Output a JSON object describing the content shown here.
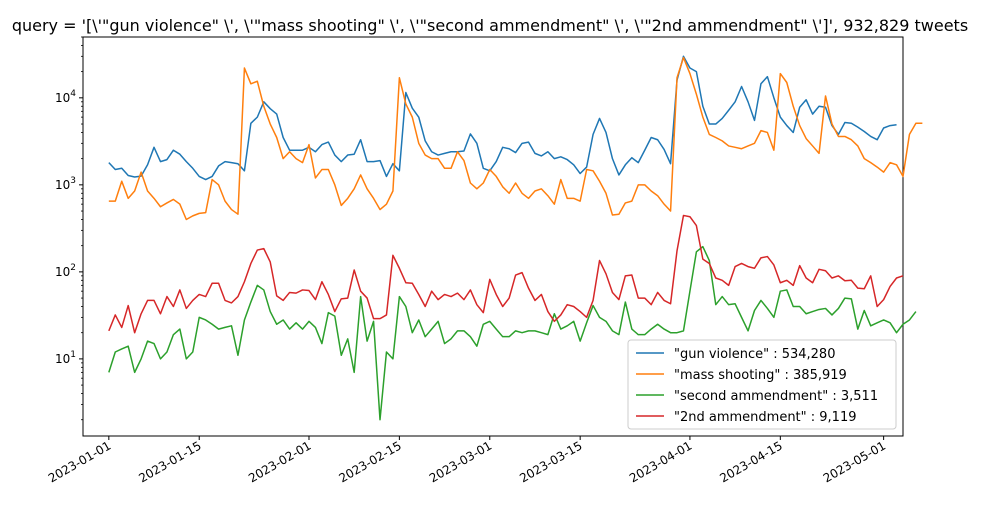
{
  "chart_data": {
    "type": "line",
    "title": "query = '[\\'\"gun violence\" \\', \\'\"mass shooting\" \\', \\'\"second ammendment\" \\', \\'\"2nd ammendment\" \\']', 932,829 tweets",
    "xlabel": "",
    "ylabel": "",
    "yscale": "log",
    "xlim": [
      "2022-12-28",
      "2023-05-04"
    ],
    "ylim": [
      1.3,
      50000
    ],
    "xticks": [
      "2023-01-01",
      "2023-01-15",
      "2023-02-01",
      "2023-02-15",
      "2023-03-01",
      "2023-03-15",
      "2023-04-01",
      "2023-04-15",
      "2023-05-01"
    ],
    "yticks": [
      {
        "value": 10,
        "base": "10",
        "exp": "1"
      },
      {
        "value": 100,
        "base": "10",
        "exp": "2"
      },
      {
        "value": 1000,
        "base": "10",
        "exp": "3"
      },
      {
        "value": 10000,
        "base": "10",
        "exp": "4"
      }
    ],
    "grid": false,
    "legend_position": "lower-right",
    "x_start": "2023-01-01",
    "series": [
      {
        "name": "\"gun violence\" : 534,280",
        "color": "#1f77b4",
        "values": [
          1800,
          1500,
          1550,
          1280,
          1230,
          1260,
          1700,
          2700,
          1850,
          1950,
          2500,
          2250,
          1850,
          1550,
          1250,
          1150,
          1250,
          1650,
          1850,
          1800,
          1750,
          1450,
          5100,
          6000,
          9000,
          7500,
          6500,
          3500,
          2500,
          2500,
          2500,
          2700,
          2400,
          2900,
          3100,
          2200,
          1850,
          2200,
          2250,
          3300,
          1850,
          1850,
          1900,
          1250,
          1750,
          1450,
          11500,
          7600,
          6000,
          3200,
          2400,
          2200,
          2300,
          2400,
          2400,
          2450,
          3850,
          3000,
          1550,
          1450,
          1850,
          2700,
          2600,
          2350,
          3000,
          3100,
          2300,
          2150,
          2400,
          2000,
          2100,
          1950,
          1700,
          1350,
          1600,
          3800,
          5800,
          4000,
          2000,
          1300,
          1700,
          2050,
          1800,
          2500,
          3500,
          3300,
          2550,
          1750,
          16000,
          30000,
          22000,
          20000,
          8000,
          5000,
          5000,
          5800,
          7200,
          9000,
          13500,
          9000,
          5500,
          14500,
          17500,
          10000,
          6000,
          4800,
          4000,
          7800,
          9500,
          6500,
          8000,
          7800,
          4800,
          3800,
          5200,
          5100,
          4600,
          4100,
          3600,
          3300,
          4500,
          4800,
          4900
        ]
      },
      {
        "name": "\"mass shooting\" : 385,919",
        "color": "#ff7f0e",
        "values": [
          650,
          650,
          1100,
          700,
          850,
          1400,
          850,
          700,
          560,
          620,
          680,
          600,
          400,
          440,
          470,
          480,
          1150,
          1000,
          650,
          520,
          460,
          22000,
          14500,
          15500,
          8000,
          5000,
          3500,
          2000,
          2400,
          2000,
          1800,
          2900,
          1200,
          1500,
          1500,
          1000,
          580,
          700,
          900,
          1300,
          900,
          700,
          520,
          600,
          850,
          17000,
          8500,
          6000,
          3000,
          2200,
          2000,
          2000,
          1550,
          1550,
          2400,
          1900,
          1050,
          900,
          1050,
          1500,
          1250,
          950,
          800,
          1050,
          800,
          700,
          850,
          900,
          750,
          600,
          1150,
          700,
          700,
          650,
          1500,
          1450,
          1100,
          800,
          450,
          460,
          620,
          650,
          1000,
          1000,
          850,
          750,
          600,
          500,
          17000,
          29000,
          19000,
          11000,
          6000,
          3800,
          3500,
          3200,
          2800,
          2700,
          2600,
          2800,
          3000,
          4200,
          4000,
          2500,
          19000,
          15000,
          8000,
          4800,
          3400,
          2800,
          2300,
          10500,
          5000,
          3600,
          3600,
          3300,
          2800,
          2000,
          1800,
          1600,
          1400,
          1800,
          1700,
          1250,
          3800,
          5100,
          5100
        ]
      },
      {
        "name": "\"second ammendment\" : 3,511",
        "color": "#2ca02c",
        "values": [
          7,
          12,
          13,
          14,
          7,
          10,
          16,
          15,
          10,
          12,
          19,
          22,
          10,
          12,
          30,
          28,
          25,
          22,
          23,
          24,
          11,
          28,
          45,
          70,
          62,
          35,
          25,
          28,
          22,
          26,
          22,
          27,
          23,
          15,
          34,
          31,
          11,
          17,
          7,
          52,
          16,
          27,
          2,
          12,
          10,
          52,
          40,
          20,
          28,
          18,
          22,
          27,
          15,
          17,
          21,
          21,
          18,
          14,
          25,
          27,
          22,
          18,
          18,
          21,
          20,
          21,
          21,
          20,
          19,
          33,
          22,
          24,
          27,
          16,
          26,
          41,
          30,
          27,
          21,
          19,
          45,
          22,
          19,
          19,
          22,
          25,
          22,
          20,
          20,
          21,
          60,
          170,
          195,
          135,
          42,
          52,
          42,
          43,
          30,
          21,
          36,
          47,
          38,
          30,
          60,
          62,
          40,
          40,
          33,
          35,
          37,
          38,
          32,
          38,
          50,
          49,
          22,
          36,
          24,
          26,
          28,
          26,
          20,
          25,
          28,
          35
        ]
      },
      {
        "name": "\"2nd ammendment\" : 9,119",
        "color": "#d62728",
        "values": [
          21,
          32,
          23,
          41,
          20,
          33,
          47,
          47,
          33,
          52,
          40,
          62,
          38,
          47,
          55,
          52,
          74,
          74,
          47,
          44,
          52,
          77,
          125,
          178,
          185,
          130,
          53,
          47,
          58,
          57,
          62,
          61,
          48,
          77,
          55,
          35,
          49,
          50,
          105,
          60,
          50,
          29,
          29,
          32,
          155,
          110,
          75,
          74,
          55,
          40,
          60,
          48,
          55,
          52,
          57,
          48,
          62,
          42,
          34,
          82,
          55,
          40,
          50,
          92,
          98,
          65,
          47,
          55,
          35,
          27,
          32,
          42,
          40,
          35,
          30,
          47,
          135,
          95,
          58,
          48,
          90,
          92,
          50,
          50,
          42,
          58,
          47,
          43,
          175,
          445,
          430,
          340,
          140,
          125,
          85,
          80,
          70,
          115,
          125,
          115,
          110,
          145,
          150,
          120,
          75,
          80,
          70,
          118,
          85,
          75,
          107,
          103,
          85,
          90,
          79,
          80,
          65,
          64,
          90,
          40,
          48,
          68,
          85,
          90
        ]
      }
    ]
  }
}
